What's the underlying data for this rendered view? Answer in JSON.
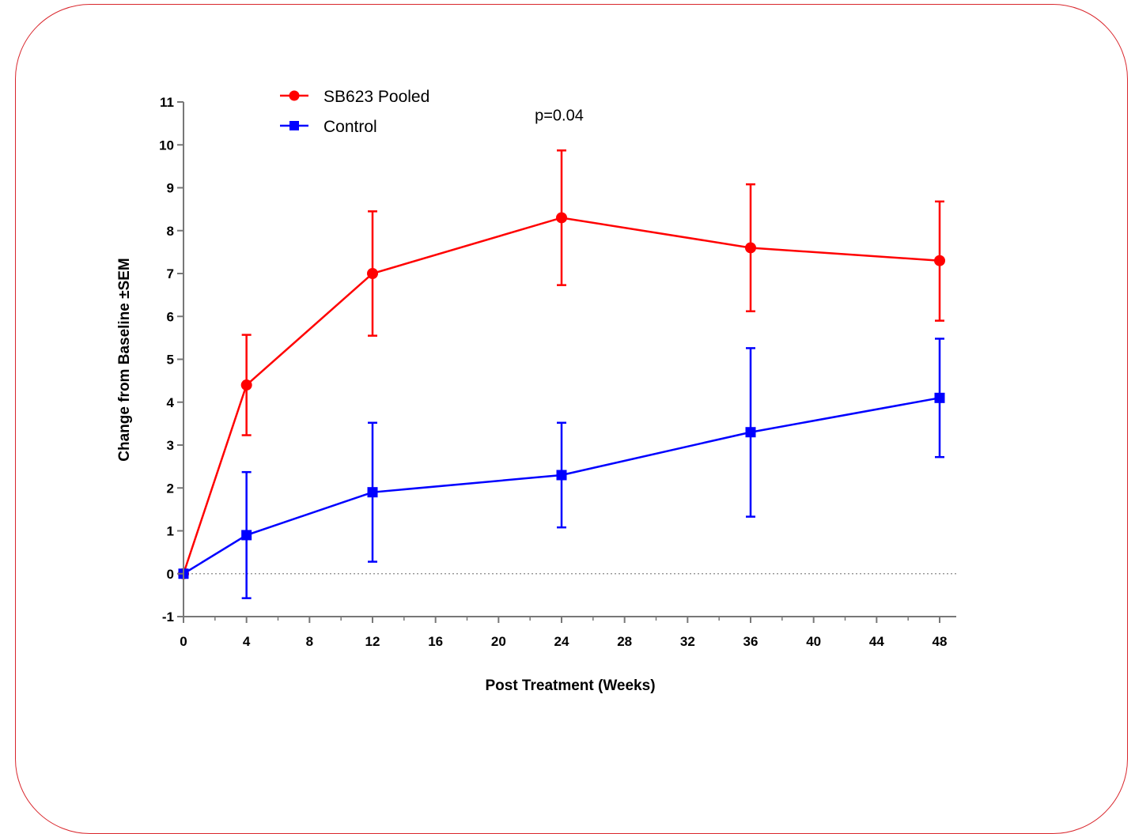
{
  "chart_data": {
    "type": "line",
    "xlabel": "Post Treatment (Weeks)",
    "ylabel": "Change from Baseline ±SEM",
    "xlim": [
      0,
      49
    ],
    "ylim": [
      -1,
      11
    ],
    "xticks": [
      0,
      4,
      8,
      12,
      16,
      20,
      24,
      28,
      32,
      36,
      40,
      44,
      48
    ],
    "yticks": [
      -1,
      0,
      1,
      2,
      3,
      4,
      5,
      6,
      7,
      8,
      9,
      10,
      11
    ],
    "reference_line": {
      "y": 0,
      "style": "dotted"
    },
    "legend_position": "top-left",
    "series": [
      {
        "name": "SB623 Pooled",
        "color": "#ff0000",
        "marker": "circle",
        "x": [
          0,
          4,
          12,
          24,
          36,
          48
        ],
        "y": [
          0,
          4.4,
          7.0,
          8.3,
          7.6,
          7.3
        ],
        "err_low": [
          0,
          3.23,
          5.55,
          6.73,
          6.12,
          5.9
        ],
        "err_high": [
          0,
          5.57,
          8.45,
          9.87,
          9.08,
          8.68
        ]
      },
      {
        "name": "Control",
        "color": "#0000ff",
        "marker": "square",
        "x": [
          0,
          4,
          12,
          24,
          36,
          48
        ],
        "y": [
          0,
          0.9,
          1.9,
          2.3,
          3.3,
          4.1
        ],
        "err_low": [
          0,
          -0.57,
          0.28,
          1.08,
          1.33,
          2.72
        ],
        "err_high": [
          0,
          2.37,
          3.52,
          3.52,
          5.26,
          5.48
        ]
      }
    ],
    "annotations": [
      {
        "text": "p=0.04",
        "x": 24,
        "y": 10.7
      }
    ]
  }
}
